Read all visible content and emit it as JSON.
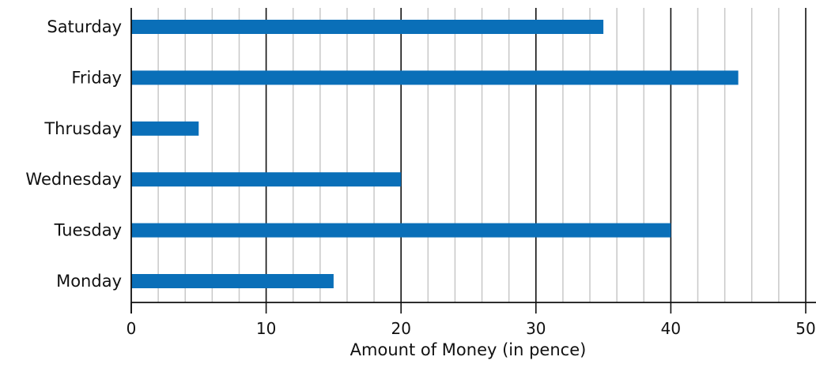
{
  "chart_data": {
    "type": "bar",
    "orientation": "horizontal",
    "categories": [
      "Monday",
      "Tuesday",
      "Wednesday",
      "Thrusday",
      "Friday",
      "Saturday"
    ],
    "values": [
      15,
      40,
      20,
      5,
      45,
      35
    ],
    "title": "",
    "xlabel": "Amount of Money (in pence)",
    "ylabel": "",
    "xlim": [
      0,
      50
    ],
    "xticks": [
      0,
      10,
      20,
      30,
      40,
      50
    ],
    "major_grid_step": 10,
    "minor_grid_step": 2,
    "grid": true,
    "bar_color": "#0a6fb8",
    "major_grid_color": "#111111",
    "minor_grid_color": "#c8c8c8"
  }
}
